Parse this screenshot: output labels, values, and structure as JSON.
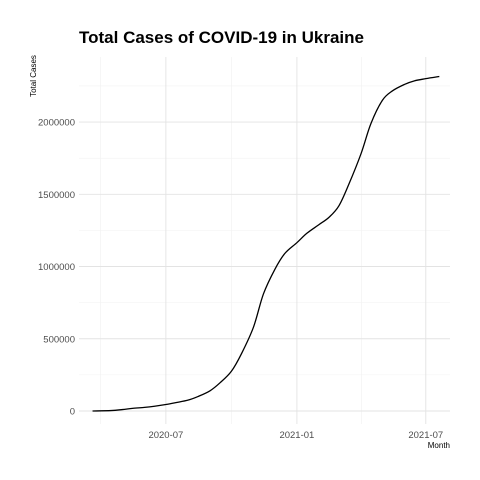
{
  "chart_data": {
    "type": "line",
    "title": "Total Cases of COVID-19 in Ukraine",
    "xlabel": "Month",
    "ylabel": "Total Cases",
    "grid": true,
    "xlim": [
      "2020-03-01",
      "2021-08-04"
    ],
    "ylim": [
      -90000,
      2450000
    ],
    "x_ticks": [
      {
        "date": "2020-07-01",
        "label": "2020-07"
      },
      {
        "date": "2021-01-01",
        "label": "2021-01"
      },
      {
        "date": "2021-07-01",
        "label": "2021-07"
      }
    ],
    "y_ticks": [
      {
        "value": 0,
        "label": "0"
      },
      {
        "value": 500000,
        "label": "500000"
      },
      {
        "value": 1000000,
        "label": "1000000"
      },
      {
        "value": 1500000,
        "label": "1500000"
      },
      {
        "value": 2000000,
        "label": "2000000"
      }
    ],
    "series": [
      {
        "color": "#000000",
        "x": [
          "2020-03-20",
          "2020-04-15",
          "2020-05-01",
          "2020-05-15",
          "2020-06-01",
          "2020-06-15",
          "2020-07-01",
          "2020-07-15",
          "2020-08-01",
          "2020-08-15",
          "2020-09-01",
          "2020-09-15",
          "2020-10-01",
          "2020-10-15",
          "2020-11-01",
          "2020-11-15",
          "2020-12-01",
          "2020-12-15",
          "2021-01-01",
          "2021-01-15",
          "2021-02-01",
          "2021-02-15",
          "2021-03-01",
          "2021-03-15",
          "2021-04-01",
          "2021-04-15",
          "2021-05-01",
          "2021-05-15",
          "2021-06-01",
          "2021-06-15",
          "2021-07-01",
          "2021-07-20"
        ],
        "y": [
          0,
          3000,
          10000,
          18000,
          25000,
          33000,
          45000,
          58000,
          75000,
          100000,
          140000,
          195000,
          275000,
          395000,
          580000,
          810000,
          980000,
          1090000,
          1165000,
          1230000,
          1290000,
          1340000,
          1420000,
          1570000,
          1780000,
          1990000,
          2150000,
          2215000,
          2260000,
          2285000,
          2300000,
          2315000
        ]
      }
    ]
  }
}
